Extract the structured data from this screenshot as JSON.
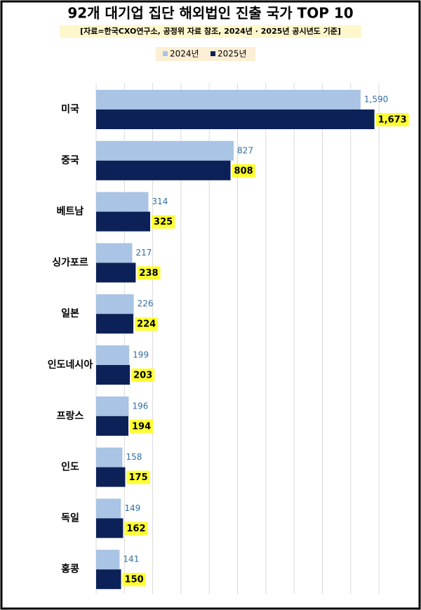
{
  "chart_data": {
    "type": "bar",
    "orientation": "horizontal",
    "title": "92개 대기업 집단 해외법인 진출 국가 TOP 10",
    "subtitle": "[자료=한국CXO연구소, 공정위 자료 참조, 2024년 · 2025년 공시년도 기준]",
    "categories": [
      "미국",
      "중국",
      "베트남",
      "싱가포르",
      "일본",
      "인도네시아",
      "프랑스",
      "인도",
      "독일",
      "홍콩"
    ],
    "series": [
      {
        "name": "2024년",
        "color": "#a9c4e4",
        "values": [
          1590,
          827,
          314,
          217,
          226,
          199,
          196,
          158,
          149,
          141
        ],
        "value_labels": [
          "1,590",
          "827",
          "314",
          "217",
          "226",
          "199",
          "196",
          "158",
          "149",
          "141"
        ]
      },
      {
        "name": "2025년",
        "color": "#0c2157",
        "values": [
          1673,
          808,
          325,
          238,
          224,
          203,
          194,
          175,
          162,
          150
        ],
        "value_labels": [
          "1,673",
          "808",
          "325",
          "238",
          "224",
          "203",
          "194",
          "175",
          "162",
          "150"
        ]
      }
    ],
    "xlim": [
      0,
      1700
    ],
    "legend": "top"
  }
}
